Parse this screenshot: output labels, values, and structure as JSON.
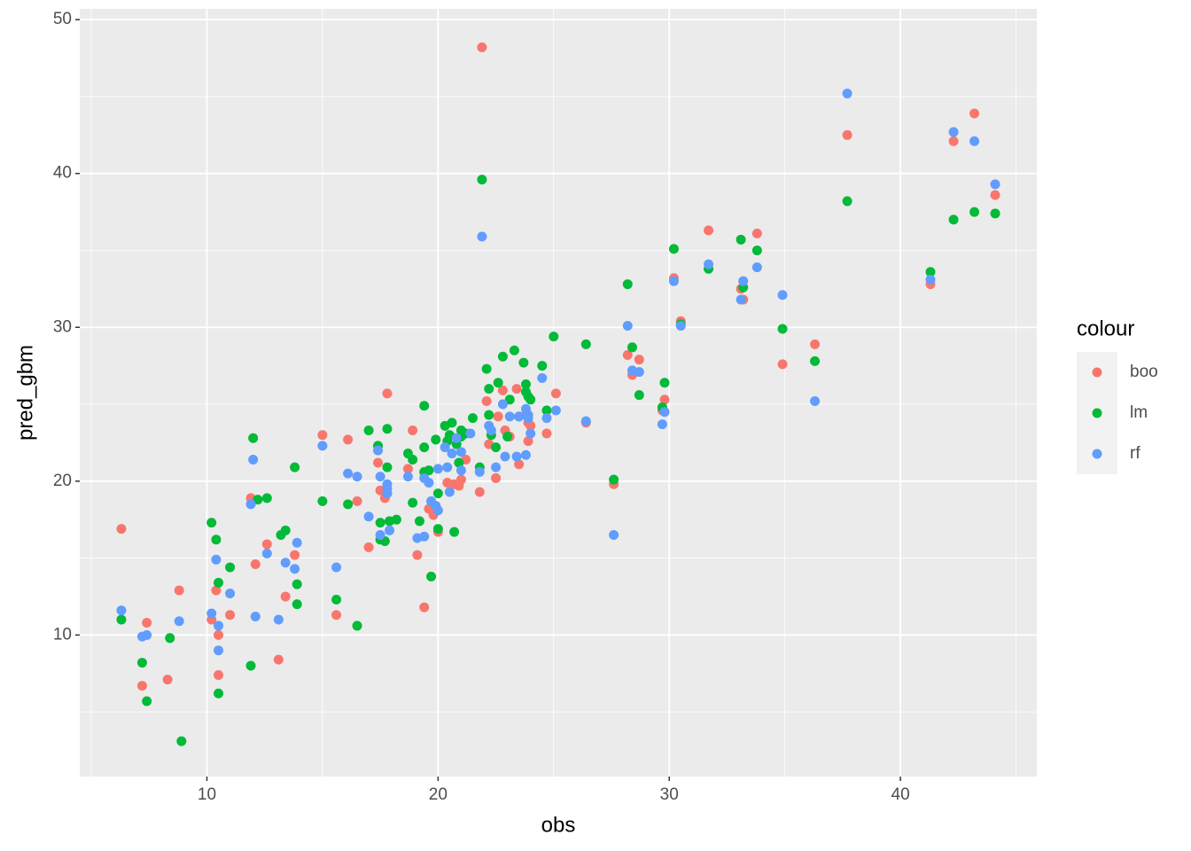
{
  "chart_data": {
    "type": "scatter",
    "x_label": "obs",
    "y_label": "pred_gbm",
    "legend_title": "colour",
    "xlim": [
      4.5,
      45.9
    ],
    "ylim": [
      0.8,
      50.7
    ],
    "xticks": [
      10,
      20,
      30,
      40
    ],
    "yticks": [
      10,
      20,
      30,
      40,
      50
    ],
    "grid": true,
    "series": [
      {
        "name": "boo",
        "color": "#f8766d",
        "x": [
          6.3,
          7.4,
          7.2,
          8.3,
          8.8,
          10.2,
          10.4,
          10.5,
          10.5,
          11.0,
          11.9,
          12.1,
          12.6,
          13.1,
          13.4,
          13.8,
          15.0,
          15.6,
          16.1,
          16.5,
          17.0,
          17.4,
          17.5,
          17.7,
          17.8,
          18.7,
          18.9,
          19.1,
          19.4,
          19.6,
          19.8,
          20.0,
          20.4,
          20.7,
          20.9,
          21.0,
          21.2,
          21.8,
          21.9,
          22.1,
          22.2,
          22.5,
          22.6,
          22.8,
          22.9,
          23.1,
          23.4,
          23.5,
          23.8,
          23.9,
          23.9,
          24.0,
          24.7,
          25.1,
          26.4,
          27.6,
          28.2,
          28.4,
          28.7,
          29.8,
          29.7,
          30.2,
          30.5,
          31.7,
          33.1,
          33.2,
          33.8,
          34.9,
          36.3,
          37.7,
          41.3,
          42.3,
          43.2,
          44.1
        ],
        "y": [
          16.9,
          10.8,
          6.7,
          7.1,
          12.9,
          11.0,
          12.9,
          10.0,
          7.4,
          11.3,
          18.9,
          14.6,
          15.9,
          8.4,
          12.5,
          15.2,
          23.0,
          11.3,
          22.7,
          18.7,
          15.7,
          21.2,
          19.4,
          18.9,
          25.7,
          20.8,
          23.3,
          15.2,
          11.8,
          18.2,
          17.8,
          16.7,
          19.9,
          19.8,
          19.7,
          20.1,
          21.4,
          19.3,
          48.2,
          25.2,
          22.4,
          20.2,
          24.2,
          25.9,
          23.3,
          22.9,
          26.0,
          21.1,
          24.3,
          22.6,
          23.8,
          23.6,
          23.1,
          25.7,
          23.8,
          19.8,
          28.2,
          26.9,
          27.9,
          25.3,
          24.6,
          33.2,
          30.4,
          36.3,
          32.5,
          31.8,
          36.1,
          27.6,
          28.9,
          42.5,
          32.8,
          42.1,
          43.9,
          38.6
        ]
      },
      {
        "name": "lm",
        "color": "#00ba38",
        "x": [
          6.3,
          7.2,
          7.4,
          8.4,
          8.9,
          10.2,
          10.4,
          10.5,
          10.5,
          11.0,
          11.9,
          12.0,
          12.2,
          12.6,
          13.2,
          13.4,
          13.8,
          13.9,
          13.9,
          15.0,
          15.6,
          16.1,
          16.5,
          17.0,
          17.4,
          17.5,
          17.5,
          17.7,
          17.8,
          17.8,
          17.9,
          18.2,
          18.7,
          18.9,
          18.9,
          19.2,
          19.4,
          19.4,
          19.4,
          19.6,
          19.7,
          19.9,
          20.0,
          20.0,
          20.3,
          20.4,
          20.5,
          20.6,
          20.7,
          20.8,
          20.9,
          21.0,
          21.0,
          21.2,
          21.5,
          21.8,
          22.1,
          22.2,
          22.2,
          22.3,
          22.5,
          22.6,
          22.8,
          23.0,
          23.1,
          23.3,
          23.5,
          23.7,
          23.8,
          23.8,
          23.9,
          24.0,
          24.5,
          24.7,
          25.0,
          26.4,
          27.6,
          28.2,
          28.4,
          28.7,
          29.8,
          29.7,
          30.2,
          30.5,
          31.7,
          33.1,
          33.2,
          33.8,
          34.9,
          36.3,
          37.7,
          41.3,
          42.3,
          43.2,
          44.1,
          21.9
        ],
        "y": [
          11.0,
          8.2,
          5.7,
          9.8,
          3.1,
          17.3,
          16.2,
          13.4,
          6.2,
          14.4,
          8.0,
          22.8,
          18.8,
          18.9,
          16.5,
          16.8,
          20.9,
          13.3,
          12.0,
          18.7,
          12.3,
          18.5,
          10.6,
          23.3,
          22.3,
          17.3,
          16.2,
          16.1,
          23.4,
          20.9,
          17.4,
          17.5,
          21.8,
          21.4,
          18.6,
          17.4,
          22.2,
          20.6,
          24.9,
          20.7,
          13.8,
          22.7,
          19.2,
          16.9,
          23.6,
          22.6,
          23.0,
          23.8,
          16.7,
          22.4,
          21.2,
          23.3,
          22.9,
          23.1,
          24.1,
          20.9,
          27.3,
          26.0,
          24.3,
          23.0,
          22.2,
          26.4,
          28.1,
          22.9,
          25.3,
          28.5,
          24.2,
          27.7,
          26.3,
          25.8,
          25.5,
          25.3,
          27.5,
          24.6,
          29.4,
          28.9,
          20.1,
          32.8,
          28.7,
          25.6,
          26.4,
          24.8,
          35.1,
          30.2,
          33.8,
          35.7,
          32.6,
          35.0,
          29.9,
          27.8,
          38.2,
          33.6,
          37.0,
          37.5,
          37.4,
          39.6
        ]
      },
      {
        "name": "rf",
        "color": "#619cff",
        "x": [
          6.3,
          7.2,
          7.4,
          8.8,
          10.2,
          10.4,
          10.5,
          10.5,
          11.0,
          11.9,
          12.0,
          12.1,
          12.6,
          13.1,
          13.4,
          13.8,
          13.9,
          15.0,
          15.6,
          16.1,
          16.5,
          17.0,
          17.4,
          17.5,
          17.5,
          17.8,
          17.8,
          17.8,
          17.9,
          18.7,
          19.1,
          19.4,
          19.4,
          19.6,
          19.7,
          19.9,
          20.0,
          20.0,
          20.3,
          20.4,
          20.5,
          20.6,
          20.8,
          21.0,
          21.0,
          21.4,
          21.8,
          21.9,
          22.2,
          22.3,
          22.5,
          22.8,
          22.9,
          23.1,
          23.4,
          23.5,
          23.8,
          23.8,
          23.9,
          23.9,
          24.0,
          24.5,
          24.7,
          25.1,
          26.4,
          27.6,
          28.2,
          28.4,
          28.7,
          29.7,
          29.8,
          30.2,
          30.5,
          31.7,
          33.1,
          33.2,
          33.8,
          34.9,
          36.3,
          37.7,
          41.3,
          42.3,
          43.2,
          44.1
        ],
        "y": [
          11.6,
          9.9,
          10.0,
          10.9,
          11.4,
          14.9,
          10.6,
          9.0,
          12.7,
          18.5,
          21.4,
          11.2,
          15.3,
          11.0,
          14.7,
          14.3,
          16.0,
          22.3,
          14.4,
          20.5,
          20.3,
          17.7,
          22.0,
          20.3,
          16.5,
          19.8,
          19.5,
          19.2,
          16.8,
          20.3,
          16.3,
          20.2,
          16.4,
          19.9,
          18.7,
          18.4,
          18.1,
          20.8,
          22.2,
          20.9,
          19.3,
          21.8,
          22.8,
          21.9,
          20.7,
          23.1,
          20.6,
          35.9,
          23.6,
          23.3,
          20.9,
          25.0,
          21.6,
          24.2,
          21.6,
          24.2,
          24.7,
          21.7,
          24.3,
          24.1,
          23.1,
          26.7,
          24.1,
          24.6,
          23.9,
          16.5,
          30.1,
          27.2,
          27.1,
          23.7,
          24.5,
          33.0,
          30.1,
          34.1,
          31.8,
          33.0,
          33.9,
          32.1,
          25.2,
          45.2,
          33.1,
          42.7,
          42.1,
          39.3
        ]
      }
    ]
  }
}
